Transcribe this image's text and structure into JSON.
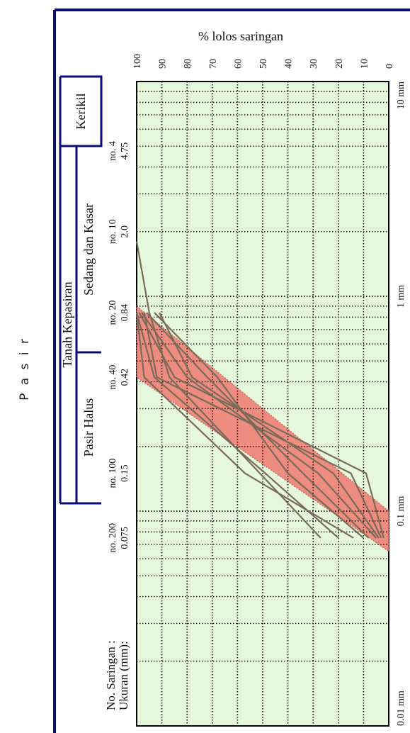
{
  "side_label": "P a s i r",
  "chart_data": {
    "type": "line",
    "title": "% lolos saringan",
    "y_axis": {
      "label": "% lolos saringan",
      "ticks": [
        100,
        90,
        80,
        70,
        60,
        50,
        40,
        30,
        20,
        10,
        0
      ],
      "range": [
        0,
        100
      ]
    },
    "x_axis": {
      "scale": "log",
      "range_mm": [
        0.01,
        10
      ],
      "unit_labels": [
        "10 mm",
        "1 mm",
        "0.1 mm",
        "0.01 mm"
      ]
    },
    "sieve_header": {
      "no_label": "No. Saringan :",
      "size_label": "Ukuran (mm):"
    },
    "sieves": [
      {
        "no": "no. 4",
        "size": "4.75"
      },
      {
        "no": "no. 10",
        "size": "2.0"
      },
      {
        "no": "no. 20",
        "size": "0.84"
      },
      {
        "no": "no. 40",
        "size": "0.42"
      },
      {
        "no": "no. 100",
        "size": "0.15"
      },
      {
        "no": "no. 200",
        "size": "0.075"
      }
    ],
    "classification": {
      "kerikil": "Kerikil",
      "tanah_kepasiran": "Tanah Kepasiran",
      "sedang_dan_kasar": "Sedang dan Kasar",
      "pasir_halus": "Pasir Halus"
    },
    "band": {
      "color": "#ef7a6e",
      "upper": [
        [
          0.9,
          100
        ],
        [
          0.1,
          0
        ]
      ],
      "lower": [
        [
          0.42,
          100
        ],
        [
          0.065,
          0
        ]
      ]
    },
    "series": [
      {
        "points": [
          [
            1.8,
            100
          ],
          [
            0.84,
            95
          ],
          [
            0.42,
            87
          ],
          [
            0.075,
            27
          ]
        ]
      },
      {
        "points": [
          [
            0.84,
            100
          ],
          [
            0.42,
            93
          ],
          [
            0.15,
            49
          ],
          [
            0.075,
            20
          ]
        ]
      },
      {
        "points": [
          [
            0.84,
            100
          ],
          [
            0.42,
            97
          ],
          [
            0.15,
            57
          ],
          [
            0.075,
            14
          ]
        ]
      },
      {
        "points": [
          [
            0.84,
            98
          ],
          [
            0.42,
            80
          ],
          [
            0.15,
            28
          ],
          [
            0.075,
            5
          ]
        ]
      },
      {
        "points": [
          [
            0.84,
            96
          ],
          [
            0.42,
            72
          ],
          [
            0.15,
            34
          ],
          [
            0.075,
            8
          ]
        ]
      },
      {
        "points": [
          [
            0.84,
            93
          ],
          [
            0.42,
            68
          ],
          [
            0.15,
            40
          ],
          [
            0.075,
            10
          ]
        ]
      },
      {
        "points": [
          [
            0.84,
            91
          ],
          [
            0.42,
            78
          ],
          [
            0.15,
            22
          ],
          [
            0.075,
            4
          ]
        ]
      },
      {
        "points": [
          [
            0.84,
            99
          ],
          [
            0.42,
            85
          ],
          [
            0.15,
            9
          ],
          [
            0.075,
            2
          ]
        ]
      },
      {
        "points": [
          [
            0.84,
            97
          ],
          [
            0.42,
            92
          ],
          [
            0.15,
            15
          ],
          [
            0.075,
            3
          ]
        ]
      }
    ],
    "colors": {
      "plot_background": "#e6f8dc",
      "frame": "#0b0b7a",
      "curve": "#7a6a5a",
      "band_edge": "#c86a6a"
    },
    "grid": true
  }
}
